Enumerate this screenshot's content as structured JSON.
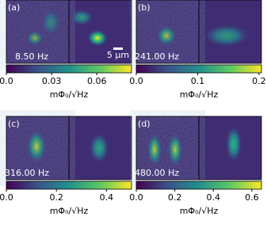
{
  "panels": [
    {
      "label": "(a)",
      "annotation": "8.50 Hz",
      "scale_bar": "5 μm",
      "colorbar": {
        "lim": [
          0,
          0.083
        ],
        "ticks": [
          {
            "value": 0,
            "label": "0.0"
          },
          0.03,
          0.06
        ],
        "label": "mΦ₀/√Hz"
      }
    },
    {
      "label": "(b)",
      "annotation": "241.00 Hz",
      "colorbar": {
        "lim": [
          0,
          0.204
        ],
        "ticks": [
          {
            "value": 0,
            "label": "0.0"
          },
          0.1,
          0.2
        ],
        "label": "mΦ₀/√Hz"
      }
    },
    {
      "label": "(c)",
      "annotation": "316.00 Hz",
      "colorbar": {
        "lim": [
          0,
          0.5
        ],
        "ticks": [
          {
            "value": 0,
            "label": "0.0"
          },
          0.2,
          0.4
        ],
        "label": "mΦ₀/√Hz"
      }
    },
    {
      "label": "(d)",
      "annotation": "480.00 Hz",
      "colorbar": {
        "lim": [
          0,
          0.65
        ],
        "ticks": [
          {
            "value": 0,
            "label": "0.0"
          },
          0.2,
          0.4,
          0.6
        ],
        "label": "mΦ₀/√Hz"
      }
    }
  ]
}
